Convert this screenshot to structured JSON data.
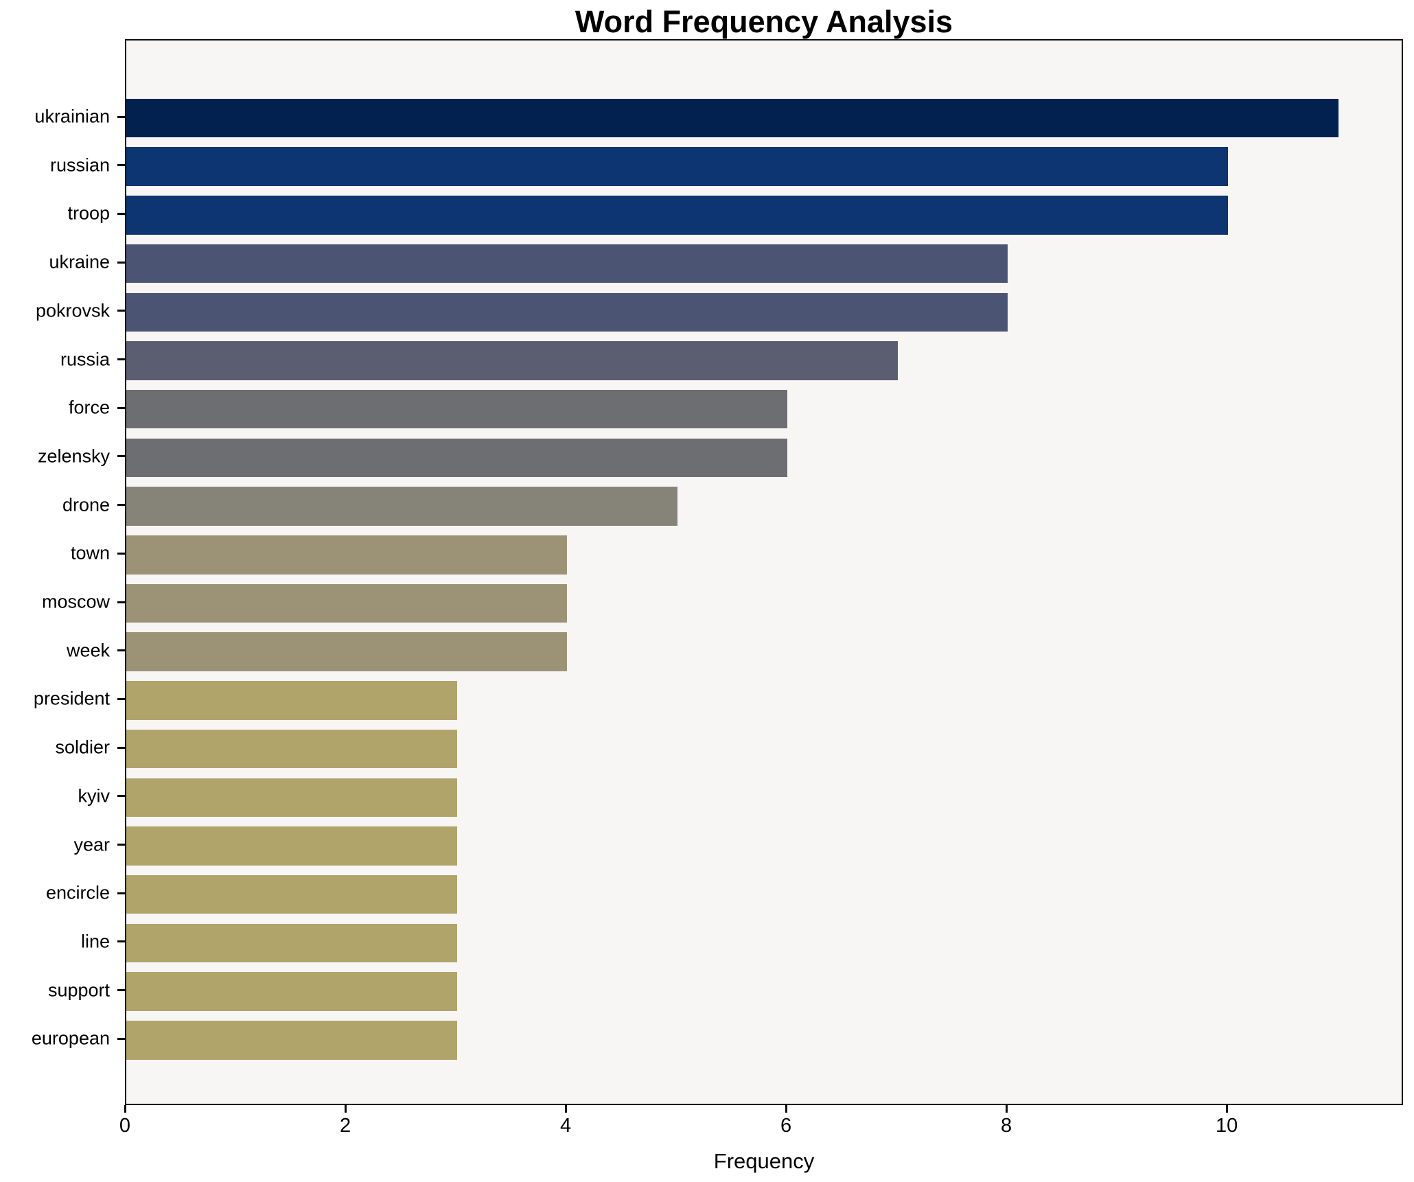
{
  "chart_data": {
    "type": "bar",
    "orientation": "horizontal",
    "title": "Word Frequency Analysis",
    "xlabel": "Frequency",
    "ylabel": "",
    "categories": [
      "ukrainian",
      "russian",
      "troop",
      "ukraine",
      "pokrovsk",
      "russia",
      "force",
      "zelensky",
      "drone",
      "town",
      "moscow",
      "week",
      "president",
      "soldier",
      "kyiv",
      "year",
      "encircle",
      "line",
      "support",
      "european"
    ],
    "values": [
      11,
      10,
      10,
      8,
      8,
      7,
      6,
      6,
      5,
      4,
      4,
      4,
      3,
      3,
      3,
      3,
      3,
      3,
      3,
      3
    ],
    "bar_colors": [
      "#03214f",
      "#0c3571",
      "#0c3571",
      "#4b5473",
      "#4b5473",
      "#5a5e70",
      "#6d6e72",
      "#6d6e72",
      "#868379",
      "#9c9377",
      "#9c9377",
      "#9c9377",
      "#b1a46b",
      "#b1a46b",
      "#b1a46b",
      "#b1a46b",
      "#b1a46b",
      "#b1a46b",
      "#b1a46b",
      "#b1a46b"
    ],
    "xticks": [
      0,
      2,
      4,
      6,
      8,
      10
    ],
    "xlim": [
      0,
      11.6
    ],
    "grid": false,
    "legend": null,
    "plot_background": "#f7f6f5",
    "figure_background": "#ffffff",
    "spine_color": "#0d0d0d",
    "text_color": "#000000"
  }
}
